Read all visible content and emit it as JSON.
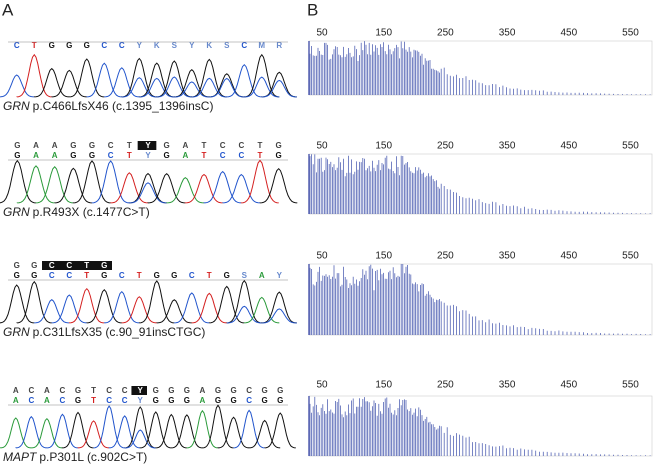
{
  "panels": {
    "a": "A",
    "b": "B"
  },
  "chromatograms": [
    {
      "rows": [
        [
          "C",
          "T",
          "G",
          "G",
          "G",
          "C",
          "C",
          "Y",
          "K",
          "S",
          "Y",
          "K",
          "S",
          "C",
          "M",
          "R"
        ]
      ],
      "highlight": [],
      "gene": "GRN",
      "variant": "p.C466LfsX46 (c.1395_1396insC)"
    },
    {
      "rows": [
        [
          "G",
          "A",
          "A",
          "G",
          "G",
          "C",
          "T",
          "Y",
          "G",
          "A",
          "T",
          "C",
          "C",
          "T",
          "G"
        ],
        [
          "G",
          "A",
          "A",
          "G",
          "G",
          "C",
          "T",
          "Y",
          "G",
          "A",
          "T",
          "C",
          "C",
          "T",
          "G"
        ]
      ],
      "highlight": [
        7,
        7
      ],
      "gene": "GRN",
      "variant": "p.R493X (c.1477C>T)"
    },
    {
      "rows": [
        [
          "G",
          "G",
          "C",
          "C",
          "T",
          "G"
        ],
        [
          "G",
          "G",
          "C",
          "C",
          "T",
          "G",
          "C",
          "T",
          "G",
          "G",
          "C",
          "T",
          "G",
          "S",
          "A",
          "Y"
        ]
      ],
      "highlight": [
        2,
        5
      ],
      "gene": "GRN",
      "variant": "p.C31LfsX35 (c.90_91insCTGC)"
    },
    {
      "rows": [
        [
          "A",
          "C",
          "A",
          "C",
          "G",
          "T",
          "C",
          "C",
          "Y",
          "G",
          "G",
          "G",
          "A",
          "G",
          "G",
          "C",
          "G",
          "G"
        ],
        [
          "A",
          "C",
          "A",
          "C",
          "G",
          "T",
          "C",
          "C",
          "Y",
          "G",
          "G",
          "G",
          "A",
          "G",
          "G",
          "C",
          "G",
          "G"
        ]
      ],
      "highlight": [
        8,
        8
      ],
      "gene": "MAPT",
      "variant": "p.P301L (c.902C>T)"
    }
  ],
  "traces": [
    {
      "ticks": [
        50,
        150,
        250,
        350,
        450,
        550
      ]
    },
    {
      "ticks": [
        50,
        150,
        250,
        350,
        450,
        550
      ]
    },
    {
      "ticks": [
        50,
        150,
        250,
        350,
        450,
        550
      ]
    },
    {
      "ticks": [
        50,
        150,
        250,
        350,
        450,
        550
      ]
    }
  ]
}
